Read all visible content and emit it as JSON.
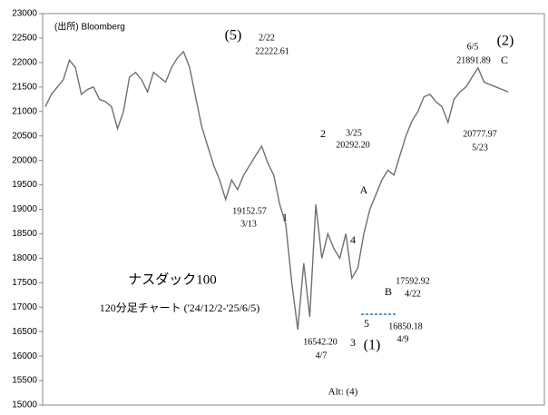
{
  "chart_data": {
    "type": "line",
    "categories": [
      null,
      null,
      null,
      null,
      null,
      null,
      null,
      null,
      null,
      null,
      null,
      null,
      null,
      null,
      null,
      null,
      null,
      null,
      null,
      null,
      null,
      null,
      null,
      null,
      null,
      null,
      null,
      null,
      null,
      null,
      null,
      null,
      null,
      null,
      null,
      null,
      null,
      null,
      null,
      null,
      null,
      null,
      null,
      null,
      null,
      null,
      null,
      null,
      null,
      null,
      null,
      null,
      null,
      null,
      null,
      null,
      null,
      null,
      null,
      null,
      null,
      null,
      null,
      null,
      null,
      null,
      null,
      null,
      null,
      null,
      null,
      null,
      null,
      null,
      null,
      null,
      null,
      null
    ],
    "series": [
      {
        "name": null,
        "color": "#707070",
        "values": [
          21100,
          21350,
          21500,
          21650,
          22050,
          21900,
          21350,
          21450,
          21500,
          21250,
          21200,
          21100,
          20650,
          21000,
          21700,
          21800,
          21650,
          21400,
          21800,
          21700,
          21600,
          21900,
          22100,
          22222.61,
          21900,
          21300,
          20700,
          20300,
          19900,
          19600,
          19200,
          19600,
          19400,
          19700,
          19900,
          20100,
          20292.2,
          19950,
          19700,
          19100,
          18700,
          17500,
          16542.2,
          17900,
          16800,
          19100,
          18000,
          18500,
          18200,
          18000,
          18500,
          17592.92,
          17800,
          18500,
          19000,
          19300,
          19600,
          19800,
          19700,
          20100,
          20500,
          20800,
          21000,
          21300,
          21350,
          21200,
          21100,
          20777.97,
          21250,
          21400,
          21500,
          21700,
          21891.89,
          21600,
          21550,
          21500,
          21450,
          21400
        ]
      }
    ],
    "ylim": [
      15000,
      23000
    ],
    "yticks": [
      15000,
      15500,
      16000,
      16500,
      17000,
      17500,
      18000,
      18500,
      19000,
      19500,
      20000,
      20500,
      21000,
      21500,
      22000,
      22500,
      23000
    ],
    "annotations": [
      "(出所) Bloomberg",
      "(5)",
      "2/22",
      "22222.61",
      "(2)",
      "6/5",
      "21891.89",
      "C",
      "2",
      "3/25",
      "20292.20",
      "19152.57",
      "3/13",
      "1",
      "A",
      "4",
      "B",
      "17592.92",
      "4/22",
      "3",
      "5",
      "16850.18",
      "4/9",
      "16542.20",
      "4/7",
      "(1)",
      "ナスダック100",
      "120分足チャート ('24/12/2-'25/6/5)",
      "20777.97",
      "5/23",
      "Alt: (4)"
    ]
  }
}
